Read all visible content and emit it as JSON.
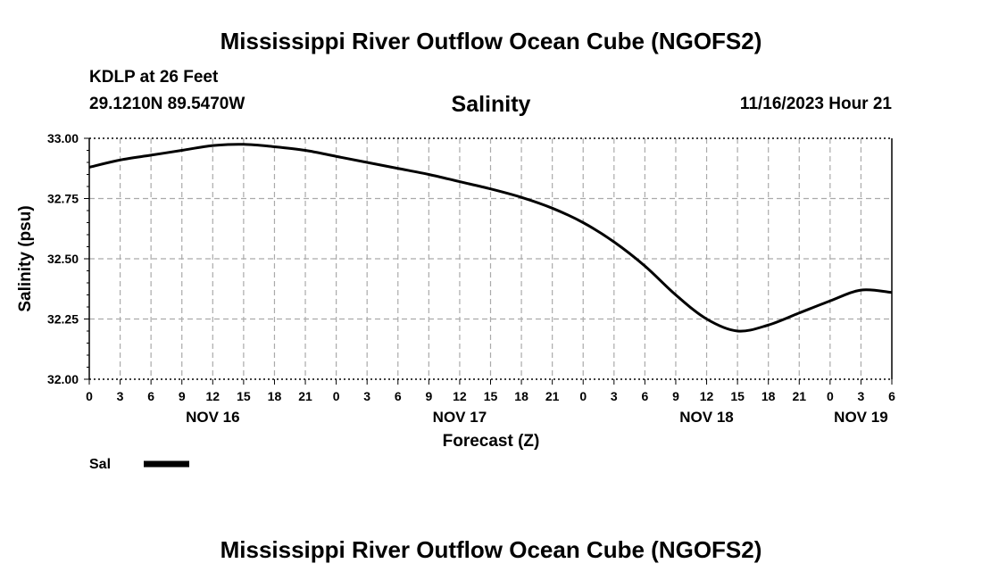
{
  "header": {
    "title": "Mississippi River Outflow Ocean Cube (NGOFS2)",
    "station": "KDLP at 26 Feet",
    "coords": "29.1210N  89.5470W",
    "datetime": "11/16/2023 Hour 21"
  },
  "footer": {
    "title": "Mississippi River Outflow Ocean Cube (NGOFS2)"
  },
  "colors": {
    "line": "#000000",
    "grid": "#aaaaaa",
    "axis": "#000000"
  },
  "chart_data": {
    "type": "line",
    "title": "Salinity",
    "xlabel": "Forecast (Z)",
    "ylabel": "Salinity (psu)",
    "xlim": [
      0,
      78
    ],
    "ylim": [
      32.0,
      33.0
    ],
    "grid": true,
    "y_ticks": [
      "32.00",
      "32.25",
      "32.50",
      "32.75",
      "33.00"
    ],
    "x_tick_labels": [
      "0",
      "3",
      "6",
      "9",
      "12",
      "15",
      "18",
      "21",
      "0",
      "3",
      "6",
      "9",
      "12",
      "15",
      "18",
      "21",
      "0",
      "3",
      "6",
      "9",
      "12",
      "15",
      "18",
      "21",
      "0",
      "3",
      "6"
    ],
    "day_labels": [
      {
        "x": 12,
        "label": "NOV 16"
      },
      {
        "x": 36,
        "label": "NOV 17"
      },
      {
        "x": 60,
        "label": "NOV 18"
      },
      {
        "x": 75,
        "label": "NOV 19"
      }
    ],
    "legend": [
      {
        "label": "Sal",
        "position": "bottom-left"
      }
    ],
    "series": [
      {
        "name": "Sal",
        "x": [
          0,
          3,
          6,
          9,
          12,
          15,
          18,
          21,
          24,
          27,
          30,
          33,
          36,
          39,
          42,
          45,
          48,
          51,
          54,
          57,
          60,
          63,
          66,
          69,
          72,
          75,
          78
        ],
        "values": [
          32.88,
          32.91,
          32.93,
          32.95,
          32.97,
          32.975,
          32.965,
          32.95,
          32.925,
          32.9,
          32.875,
          32.85,
          32.82,
          32.79,
          32.755,
          32.71,
          32.65,
          32.57,
          32.47,
          32.35,
          32.25,
          32.2,
          32.225,
          32.275,
          32.325,
          32.37,
          32.36
        ]
      }
    ]
  }
}
